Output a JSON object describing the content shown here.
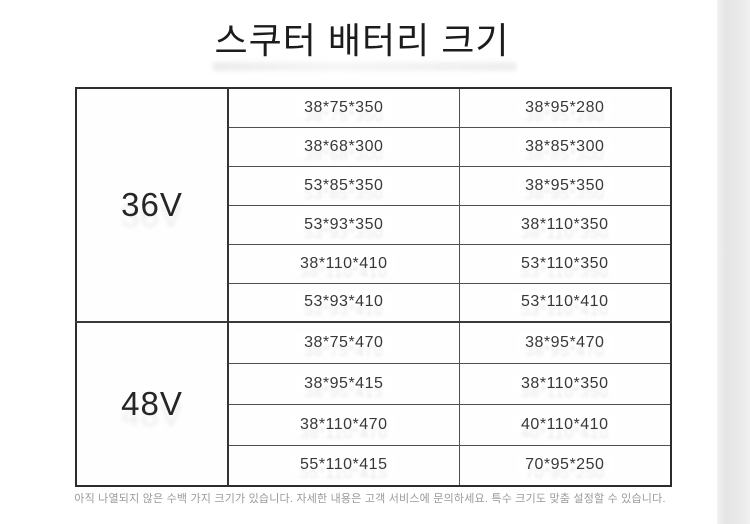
{
  "title": "스쿠터 배터리 크기",
  "table": {
    "sections": [
      {
        "voltage": "36V",
        "rows": [
          [
            "38*75*350",
            "38*95*280"
          ],
          [
            "38*68*300",
            "38*85*300"
          ],
          [
            "53*85*350",
            "38*95*350"
          ],
          [
            "53*93*350",
            "38*110*350"
          ],
          [
            "38*110*410",
            "53*110*350"
          ],
          [
            "53*93*410",
            "53*110*410"
          ]
        ]
      },
      {
        "voltage": "48V",
        "rows": [
          [
            "38*75*470",
            "38*95*470"
          ],
          [
            "38*95*415",
            "38*110*350"
          ],
          [
            "38*110*470",
            "40*110*410"
          ],
          [
            "55*110*415",
            "70*95*250"
          ]
        ]
      }
    ]
  },
  "footer_note": "아직 나열되지 않은 수백 가지 크기가 있습니다. 자세한 내용은 고객 서비스에 문의하세요. 특수 크기도 맞춤 설정할 수 있습니다."
}
